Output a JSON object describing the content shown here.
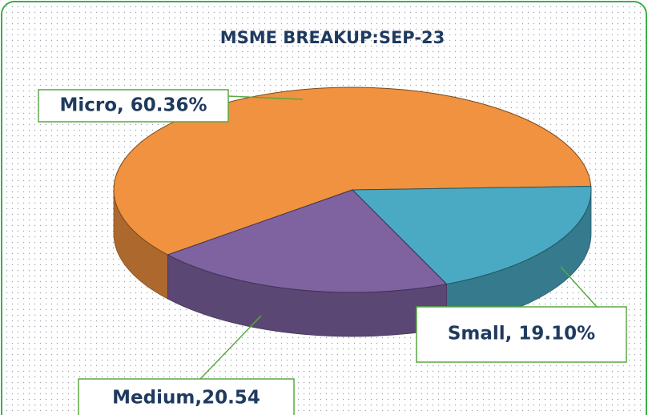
{
  "chart_data": {
    "type": "pie",
    "title": "MSME BREAKUP:SEP-23",
    "values": [
      60.36,
      19.1,
      20.54
    ],
    "value_labels": [
      "Micro, 60.36%",
      "Small, 19.10%",
      "Medium,20.54"
    ],
    "colors": [
      "#f0923f",
      "#4aaac4",
      "#7f63a1"
    ]
  }
}
